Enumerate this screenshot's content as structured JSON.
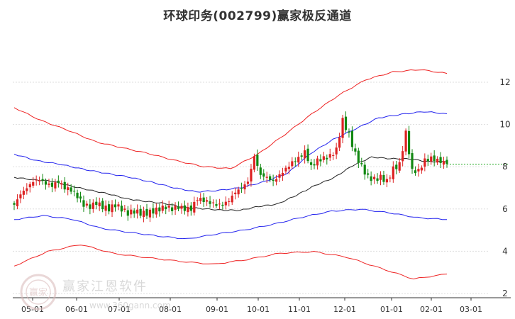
{
  "title": "环球印务(002799)赢家极反通道",
  "watermark": {
    "text": "赢家江恩软件",
    "url": "www.360gann.com",
    "logo_text": "赢家"
  },
  "colors": {
    "up": "#dd2222",
    "down": "#118811",
    "ma": "#222222",
    "inner": "#2222ee",
    "outer": "#ee2222",
    "last": "#22aa22",
    "grid": "#dddddd"
  },
  "chart_data": {
    "type": "candlestick",
    "y_ticks": [
      2,
      4,
      6,
      8,
      10,
      12
    ],
    "ylim": [
      2.0,
      13.0
    ],
    "x_ticks": [
      "05-01",
      "06-01",
      "07-01",
      "08-01",
      "09-01",
      "10-01",
      "11-01",
      "12-01",
      "01-01",
      "02-01",
      "03-01"
    ],
    "grid": "horizontal",
    "last_price": 8.12,
    "closes": [
      6.2,
      6.7,
      7.0,
      7.3,
      7.4,
      7.2,
      7.1,
      7.3,
      7.0,
      6.9,
      6.6,
      6.2,
      6.1,
      6.3,
      6.1,
      6.0,
      6.2,
      6.0,
      5.8,
      5.9,
      5.8,
      5.8,
      5.9,
      6.0,
      6.1,
      6.0,
      6.1,
      6.0,
      6.0,
      6.5,
      6.4,
      6.3,
      6.2,
      6.2,
      6.4,
      6.8,
      7.0,
      7.3,
      8.5,
      7.6,
      7.5,
      7.3,
      7.6,
      7.9,
      8.2,
      8.4,
      8.7,
      8.0,
      8.3,
      8.4,
      8.5,
      8.8,
      10.2,
      9.5,
      8.6,
      8.0,
      7.5,
      7.4,
      7.5,
      7.3,
      7.9,
      8.1,
      9.6,
      7.8,
      7.8,
      8.3,
      8.4,
      8.3,
      8.2
    ],
    "ma": [
      7.5,
      7.4,
      7.3,
      7.1,
      6.9,
      6.7,
      6.5,
      6.35,
      6.25,
      6.1,
      6.0,
      5.95,
      5.95,
      6.1,
      6.25,
      6.65,
      7.1,
      7.5,
      8.05,
      8.45,
      8.4,
      8.35,
      8.25,
      8.25
    ],
    "inner_upper": [
      8.6,
      8.3,
      8.1,
      7.9,
      7.7,
      7.5,
      7.3,
      7.0,
      6.8,
      6.9,
      7.0,
      7.3,
      7.7,
      8.6,
      9.3,
      9.8,
      10.3,
      10.5,
      10.6,
      10.5
    ],
    "inner_lower": [
      5.5,
      5.7,
      5.5,
      5.1,
      4.9,
      4.7,
      4.6,
      4.8,
      5.0,
      5.3,
      5.6,
      5.9,
      6.0,
      5.8,
      5.6,
      5.5
    ],
    "outer_upper": [
      10.8,
      10.2,
      9.7,
      9.2,
      8.9,
      8.6,
      8.3,
      8.0,
      7.9,
      8.6,
      9.5,
      10.5,
      11.4,
      12.1,
      12.5,
      12.6,
      12.4
    ],
    "outer_lower": [
      3.3,
      4.0,
      4.3,
      3.9,
      3.7,
      3.5,
      3.4,
      3.6,
      3.9,
      4.0,
      3.7,
      3.2,
      2.7,
      2.9
    ]
  }
}
